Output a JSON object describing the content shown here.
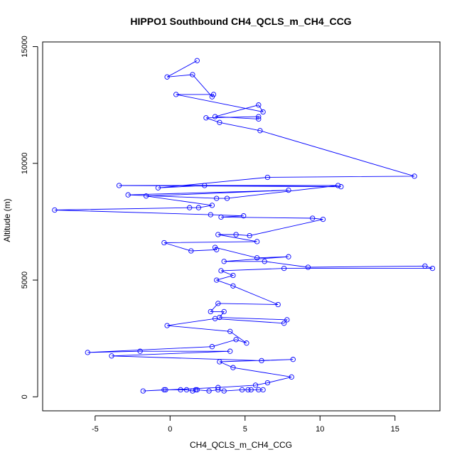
{
  "chart_data": {
    "type": "line",
    "title": "HIPPO1 Southbound CH4_QCLS_m_CH4_CCG",
    "xlabel": "CH4_QCLS_m_CH4_CCG",
    "ylabel": "Altitude (m)",
    "xlim": [
      -8.5,
      18
    ],
    "ylim": [
      -600,
      15200
    ],
    "xticks": [
      -5,
      0,
      5,
      10,
      15
    ],
    "yticks": [
      0,
      5000,
      10000,
      15000
    ],
    "grid": false,
    "series": [
      {
        "color": "#0000ff",
        "marker": "open-circle",
        "points": [
          [
            1.8,
            14400
          ],
          [
            -0.2,
            13700
          ],
          [
            1.5,
            13800
          ],
          [
            2.8,
            12850
          ],
          [
            2.9,
            12950
          ],
          [
            0.4,
            12950
          ],
          [
            6.2,
            12200
          ],
          [
            5.9,
            12500
          ],
          [
            3.0,
            12000
          ],
          [
            5.9,
            11900
          ],
          [
            5.9,
            12000
          ],
          [
            2.4,
            11950
          ],
          [
            3.3,
            11750
          ],
          [
            6.0,
            11400
          ],
          [
            16.3,
            9450
          ],
          [
            6.5,
            9400
          ],
          [
            -0.8,
            8950
          ],
          [
            2.3,
            9050
          ],
          [
            11.4,
            9000
          ],
          [
            -3.4,
            9050
          ],
          [
            11.2,
            9050
          ],
          [
            3.8,
            8500
          ],
          [
            3.1,
            8500
          ],
          [
            -2.8,
            8650
          ],
          [
            7.9,
            8850
          ],
          [
            -1.6,
            8600
          ],
          [
            2.8,
            8200
          ],
          [
            1.9,
            8100
          ],
          [
            1.3,
            8100
          ],
          [
            -7.7,
            8000
          ],
          [
            2.7,
            7800
          ],
          [
            4.9,
            7750
          ],
          [
            3.4,
            7700
          ],
          [
            9.5,
            7650
          ],
          [
            10.2,
            7600
          ],
          [
            5.3,
            6900
          ],
          [
            4.4,
            6950
          ],
          [
            3.2,
            6950
          ],
          [
            5.8,
            6650
          ],
          [
            -0.4,
            6600
          ],
          [
            1.4,
            6250
          ],
          [
            3.1,
            6300
          ],
          [
            3.0,
            6400
          ],
          [
            5.8,
            5950
          ],
          [
            7.9,
            6000
          ],
          [
            3.6,
            5800
          ],
          [
            6.3,
            5800
          ],
          [
            9.2,
            5550
          ],
          [
            17.0,
            5600
          ],
          [
            17.5,
            5500
          ],
          [
            7.6,
            5500
          ],
          [
            3.4,
            5400
          ],
          [
            4.2,
            5200
          ],
          [
            3.1,
            5000
          ],
          [
            4.2,
            4750
          ],
          [
            7.2,
            3950
          ],
          [
            3.2,
            4000
          ],
          [
            2.7,
            3650
          ],
          [
            3.6,
            3650
          ],
          [
            3.3,
            3400
          ],
          [
            7.8,
            3300
          ],
          [
            7.6,
            3150
          ],
          [
            3.0,
            3350
          ],
          [
            -0.2,
            3050
          ],
          [
            4.0,
            2800
          ],
          [
            5.1,
            2300
          ],
          [
            4.4,
            2450
          ],
          [
            2.8,
            2150
          ],
          [
            -5.5,
            1900
          ],
          [
            -2.0,
            1950
          ],
          [
            4.0,
            1950
          ],
          [
            -3.9,
            1750
          ],
          [
            6.1,
            1550
          ],
          [
            8.2,
            1600
          ],
          [
            3.3,
            1500
          ],
          [
            4.2,
            1250
          ],
          [
            8.1,
            850
          ],
          [
            6.5,
            600
          ],
          [
            5.7,
            500
          ],
          [
            3.2,
            400
          ],
          [
            -1.8,
            250
          ],
          [
            -0.4,
            300
          ],
          [
            -0.3,
            300
          ],
          [
            0.7,
            300
          ],
          [
            1.1,
            300
          ],
          [
            1.5,
            250
          ],
          [
            1.7,
            300
          ],
          [
            1.8,
            300
          ],
          [
            2.6,
            250
          ],
          [
            3.2,
            300
          ],
          [
            3.6,
            250
          ],
          [
            4.8,
            300
          ],
          [
            5.2,
            300
          ],
          [
            5.4,
            300
          ],
          [
            5.9,
            300
          ],
          [
            6.2,
            300
          ]
        ]
      }
    ]
  }
}
